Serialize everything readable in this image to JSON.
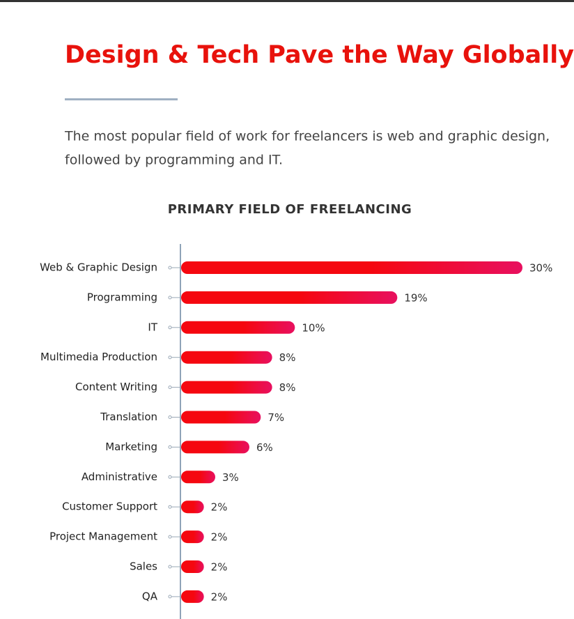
{
  "header": {
    "title": "Design & Tech Pave the Way Globally",
    "intro_lines": [
      "The most popular field of work for freelancers is web and graphic design,",
      "followed by programming and IT."
    ]
  },
  "chart_data": {
    "type": "bar",
    "orientation": "horizontal",
    "title": "PRIMARY FIELD OF FREELANCING",
    "categories": [
      "Web & Graphic Design",
      "Programming",
      "IT",
      "Multimedia Production",
      "Content Writing",
      "Translation",
      "Marketing",
      "Administrative",
      "Customer Support",
      "Project Management",
      "Sales",
      "QA"
    ],
    "values": [
      30,
      19,
      10,
      8,
      8,
      7,
      6,
      3,
      2,
      2,
      2,
      2
    ],
    "value_labels": [
      "30%",
      "19%",
      "10%",
      "8%",
      "8%",
      "7%",
      "6%",
      "3%",
      "2%",
      "2%",
      "2%",
      "2%"
    ],
    "color": "#f5070f"
  }
}
